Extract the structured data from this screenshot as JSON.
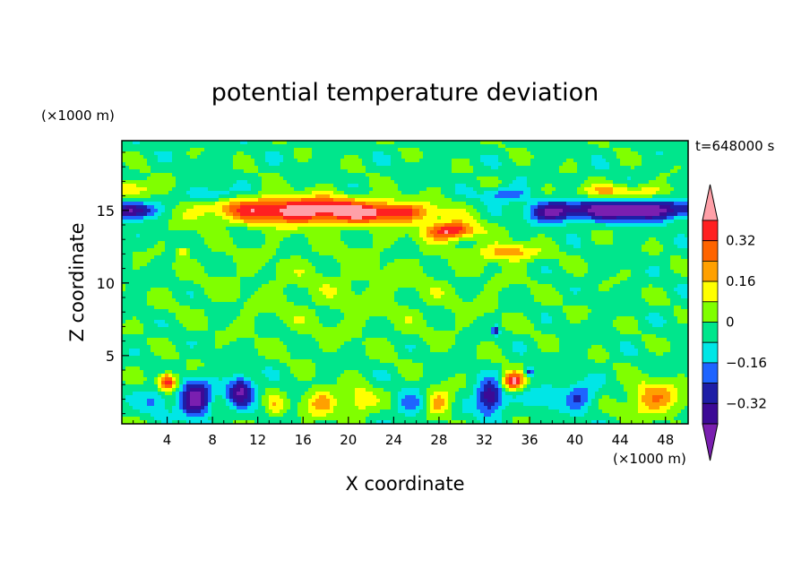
{
  "chart_data": {
    "type": "heatmap",
    "title": "potential temperature deviation",
    "xlabel": "X coordinate",
    "ylabel": "Z coordinate",
    "x_unit": "(×1000 m)",
    "y_unit": "(×1000 m)",
    "time_label": "t=648000 s",
    "xlim": [
      0,
      50
    ],
    "ylim": [
      0.3,
      19.8
    ],
    "x_ticks": [
      4,
      8,
      12,
      16,
      20,
      24,
      28,
      32,
      36,
      40,
      44,
      48
    ],
    "y_ticks": [
      5,
      10,
      15
    ],
    "grid": false,
    "legend": "right",
    "colorbar": {
      "levels": [
        -0.48,
        -0.4,
        -0.32,
        -0.24,
        -0.16,
        -0.08,
        0,
        0.08,
        0.16,
        0.24,
        0.32,
        0.4
      ],
      "labeled_levels": [
        -0.32,
        -0.16,
        0,
        0.16,
        0.32
      ],
      "colors": [
        "#7a1fb0",
        "#3c0a96",
        "#1e1ea6",
        "#1e64ff",
        "#00e6e6",
        "#00e68c",
        "#80ff00",
        "#ffff00",
        "#ffa000",
        "#ff6400",
        "#ff2020",
        "#ffa0a8"
      ]
    },
    "features": [
      {
        "x": 16,
        "z": 15.0,
        "sx": 8.0,
        "sz": 0.9,
        "value": 0.5
      },
      {
        "x": 24,
        "z": 14.8,
        "sx": 4.0,
        "sz": 0.6,
        "value": 0.25
      },
      {
        "x": 29,
        "z": 13.6,
        "sx": 2.2,
        "sz": 0.6,
        "value": 0.45
      },
      {
        "x": 34,
        "z": 12.1,
        "sx": 2.5,
        "sz": 0.6,
        "value": 0.25
      },
      {
        "x": 45,
        "z": 15.0,
        "sx": 6.0,
        "sz": 0.7,
        "value": -0.48
      },
      {
        "x": 38,
        "z": 14.9,
        "sx": 2.0,
        "sz": 0.7,
        "value": -0.3
      },
      {
        "x": 1,
        "z": 15.0,
        "sx": 2.0,
        "sz": 0.6,
        "value": -0.45
      },
      {
        "x": 8,
        "z": 16.1,
        "sx": 2.0,
        "sz": 0.5,
        "value": -0.2
      },
      {
        "x": 34,
        "z": 16.1,
        "sx": 2.0,
        "sz": 0.5,
        "value": -0.22
      },
      {
        "x": 44,
        "z": 16.3,
        "sx": 5.0,
        "sz": 0.5,
        "value": 0.18
      },
      {
        "x": 1,
        "z": 16.5,
        "sx": 2.0,
        "sz": 0.6,
        "value": 0.22
      },
      {
        "x": 4,
        "z": 3.2,
        "sx": 0.8,
        "sz": 0.6,
        "value": 0.45
      },
      {
        "x": 6.5,
        "z": 2.0,
        "sx": 1.3,
        "sz": 1.2,
        "value": -0.45
      },
      {
        "x": 10.5,
        "z": 2.6,
        "sx": 1.2,
        "sz": 1.0,
        "value": -0.38
      },
      {
        "x": 13.5,
        "z": 1.4,
        "sx": 0.8,
        "sz": 0.8,
        "value": 0.15
      },
      {
        "x": 17.5,
        "z": 1.8,
        "sx": 1.5,
        "sz": 1.0,
        "value": 0.22
      },
      {
        "x": 21,
        "z": 1.8,
        "sx": 1.3,
        "sz": 1.0,
        "value": 0.2
      },
      {
        "x": 25.5,
        "z": 1.6,
        "sx": 1.2,
        "sz": 0.8,
        "value": -0.18
      },
      {
        "x": 28,
        "z": 1.8,
        "sx": 1.2,
        "sz": 0.9,
        "value": 0.22
      },
      {
        "x": 32.5,
        "z": 2.1,
        "sx": 1.2,
        "sz": 1.1,
        "value": -0.4
      },
      {
        "x": 34.5,
        "z": 3.2,
        "sx": 0.9,
        "sz": 0.6,
        "value": 0.45
      },
      {
        "x": 37.5,
        "z": 2.2,
        "sx": 1.3,
        "sz": 0.8,
        "value": -0.15
      },
      {
        "x": 40.5,
        "z": 2.2,
        "sx": 1.4,
        "sz": 0.9,
        "value": -0.22
      },
      {
        "x": 47,
        "z": 2.0,
        "sx": 2.5,
        "sz": 1.2,
        "value": 0.25
      },
      {
        "x": 3,
        "z": 2.0,
        "sx": 1.2,
        "sz": 1.0,
        "value": -0.15
      },
      {
        "x": 20,
        "z": 9.5,
        "sx": 15.0,
        "sz": 4.0,
        "value": 0.06
      },
      {
        "x": 33,
        "z": 6.7,
        "sx": 0.3,
        "sz": 0.3,
        "value": -0.3
      },
      {
        "x": 36,
        "z": 3.9,
        "sx": 0.4,
        "sz": 0.3,
        "value": -0.3
      },
      {
        "x": 5.5,
        "z": 12.2,
        "sx": 0.6,
        "sz": 0.3,
        "value": 0.2
      }
    ]
  }
}
